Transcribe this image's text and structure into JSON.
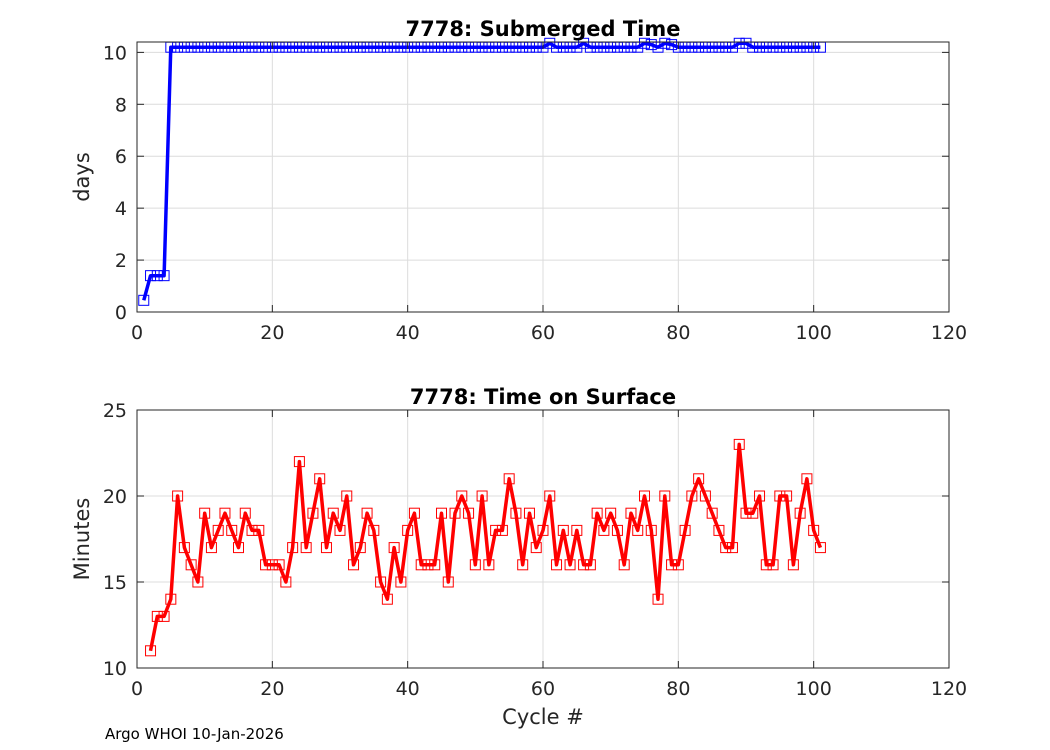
{
  "footer": "Argo WHOI 10-Jan-2026",
  "chart_data": [
    {
      "type": "line",
      "title": "7778: Submerged Time",
      "xlabel": "",
      "ylabel": "days",
      "xlim": [
        0,
        120
      ],
      "ylim": [
        0,
        10.4
      ],
      "xticks": [
        0,
        20,
        40,
        60,
        80,
        100,
        120
      ],
      "yticks": [
        0,
        2,
        4,
        6,
        8,
        10
      ],
      "grid": true,
      "series": [
        {
          "color": "#0000ff",
          "marker": "square",
          "x": [
            1,
            2,
            3,
            4,
            5,
            6,
            7,
            8,
            9,
            10,
            11,
            12,
            13,
            14,
            15,
            16,
            17,
            18,
            19,
            20,
            21,
            22,
            23,
            24,
            25,
            26,
            27,
            28,
            29,
            30,
            31,
            32,
            33,
            34,
            35,
            36,
            37,
            38,
            39,
            40,
            41,
            42,
            43,
            44,
            45,
            46,
            47,
            48,
            49,
            50,
            51,
            52,
            53,
            54,
            55,
            56,
            57,
            58,
            59,
            60,
            61,
            62,
            63,
            64,
            65,
            66,
            67,
            68,
            69,
            70,
            71,
            72,
            73,
            74,
            75,
            76,
            77,
            78,
            79,
            80,
            81,
            82,
            83,
            84,
            85,
            86,
            87,
            88,
            89,
            90,
            91,
            92,
            93,
            94,
            95,
            96,
            97,
            98,
            99,
            100,
            101
          ],
          "y": [
            0.45,
            1.4,
            1.4,
            1.4,
            10.2,
            10.2,
            10.2,
            10.2,
            10.2,
            10.2,
            10.2,
            10.2,
            10.2,
            10.2,
            10.2,
            10.2,
            10.2,
            10.2,
            10.2,
            10.2,
            10.2,
            10.2,
            10.2,
            10.2,
            10.2,
            10.2,
            10.2,
            10.2,
            10.2,
            10.2,
            10.2,
            10.2,
            10.2,
            10.2,
            10.2,
            10.2,
            10.2,
            10.2,
            10.2,
            10.2,
            10.2,
            10.2,
            10.2,
            10.2,
            10.2,
            10.2,
            10.2,
            10.2,
            10.2,
            10.2,
            10.2,
            10.2,
            10.2,
            10.2,
            10.2,
            10.2,
            10.2,
            10.2,
            10.2,
            10.2,
            10.35,
            10.2,
            10.2,
            10.2,
            10.2,
            10.35,
            10.2,
            10.2,
            10.2,
            10.2,
            10.2,
            10.2,
            10.2,
            10.2,
            10.35,
            10.3,
            10.2,
            10.35,
            10.3,
            10.2,
            10.2,
            10.2,
            10.2,
            10.2,
            10.2,
            10.2,
            10.2,
            10.2,
            10.35,
            10.35,
            10.2,
            10.2,
            10.2,
            10.2,
            10.2,
            10.2,
            10.2,
            10.2,
            10.2,
            10.2,
            10.2
          ]
        }
      ]
    },
    {
      "type": "line",
      "title": "7778: Time on Surface",
      "xlabel": "Cycle #",
      "ylabel": "Minutes",
      "xlim": [
        0,
        120
      ],
      "ylim": [
        10,
        25
      ],
      "xticks": [
        0,
        20,
        40,
        60,
        80,
        100,
        120
      ],
      "yticks": [
        10,
        15,
        20,
        25
      ],
      "grid": true,
      "series": [
        {
          "color": "#ff0000",
          "marker": "square",
          "x": [
            2,
            3,
            4,
            5,
            6,
            7,
            8,
            9,
            10,
            11,
            12,
            13,
            14,
            15,
            16,
            17,
            18,
            19,
            20,
            21,
            22,
            23,
            24,
            25,
            26,
            27,
            28,
            29,
            30,
            31,
            32,
            33,
            34,
            35,
            36,
            37,
            38,
            39,
            40,
            41,
            42,
            43,
            44,
            45,
            46,
            47,
            48,
            49,
            50,
            51,
            52,
            53,
            54,
            55,
            56,
            57,
            58,
            59,
            60,
            61,
            62,
            63,
            64,
            65,
            66,
            67,
            68,
            69,
            70,
            71,
            72,
            73,
            74,
            75,
            76,
            77,
            78,
            79,
            80,
            81,
            82,
            83,
            84,
            85,
            86,
            87,
            88,
            89,
            90,
            91,
            92,
            93,
            94,
            95,
            96,
            97,
            98,
            99,
            100,
            101
          ],
          "y": [
            11,
            13,
            13,
            14,
            20,
            17,
            16,
            15,
            19,
            17,
            18,
            19,
            18,
            17,
            19,
            18,
            18,
            16,
            16,
            16,
            15,
            17,
            22,
            17,
            19,
            21,
            17,
            19,
            18,
            20,
            16,
            17,
            19,
            18,
            15,
            14,
            17,
            15,
            18,
            19,
            16,
            16,
            16,
            19,
            15,
            19,
            20,
            19,
            16,
            20,
            16,
            18,
            18,
            21,
            19,
            16,
            19,
            17,
            18,
            20,
            16,
            18,
            16,
            18,
            16,
            16,
            19,
            18,
            19,
            18,
            16,
            19,
            18,
            20,
            18,
            14,
            20,
            16,
            16,
            18,
            20,
            21,
            20,
            19,
            18,
            17,
            17,
            23,
            19,
            19,
            20,
            16,
            16,
            20,
            20,
            16,
            19,
            21,
            18,
            17
          ]
        }
      ]
    }
  ]
}
